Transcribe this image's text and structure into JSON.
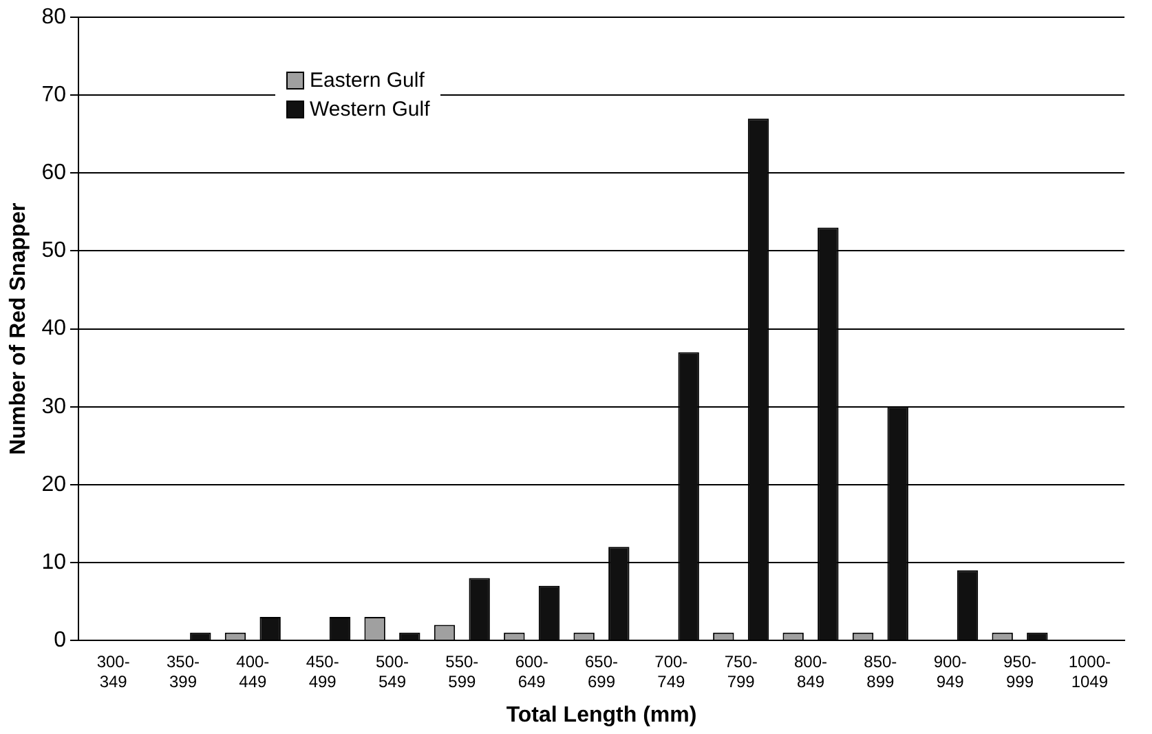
{
  "chart_data": {
    "type": "bar",
    "xlabel": "Total Length (mm)",
    "ylabel": "Number of Red Snapper",
    "categories": [
      "300-349",
      "350-399",
      "400-449",
      "450-499",
      "500-549",
      "550-599",
      "600-649",
      "650-699",
      "700-749",
      "750-799",
      "800-849",
      "850-899",
      "900-949",
      "950-999",
      "1000-1049"
    ],
    "series": [
      {
        "name": "Eastern Gulf",
        "color": "#a0a0a0",
        "values": [
          0,
          0,
          1,
          0,
          3,
          2,
          1,
          1,
          0,
          1,
          1,
          1,
          0,
          1,
          0
        ]
      },
      {
        "name": "Western Gulf",
        "color": "#111111",
        "values": [
          0,
          1,
          3,
          3,
          1,
          8,
          7,
          12,
          37,
          67,
          53,
          30,
          9,
          1,
          0
        ]
      }
    ],
    "ylim": [
      0,
      80
    ],
    "yticks": [
      0,
      10,
      20,
      30,
      40,
      50,
      60,
      70,
      80
    ],
    "grid": "y",
    "legend": "top left"
  }
}
